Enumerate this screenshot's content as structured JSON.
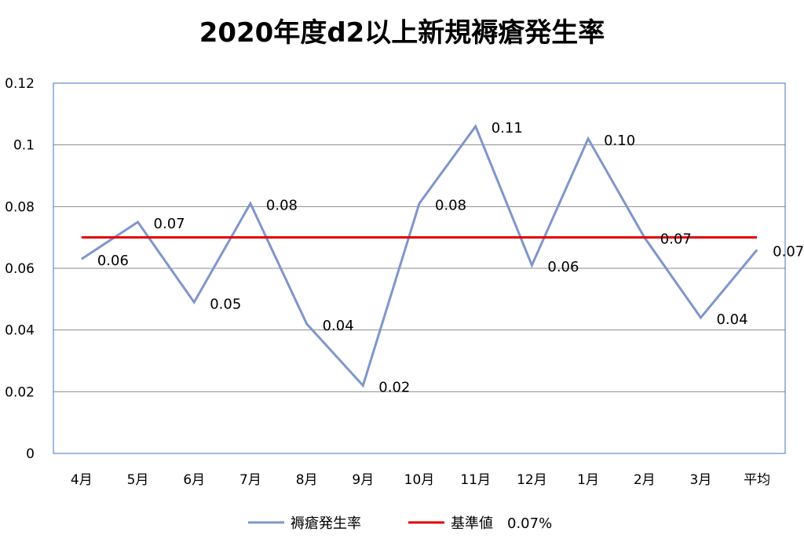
{
  "chart_data": {
    "type": "line",
    "title": "2020年度d2以上新規褥瘡発生率",
    "categories": [
      "4月",
      "5月",
      "6月",
      "7月",
      "8月",
      "9月",
      "10月",
      "11月",
      "12月",
      "1月",
      "2月",
      "3月",
      "平均"
    ],
    "series": [
      {
        "name": "褥瘡発生率",
        "color": "#7f96cc",
        "values": [
          0.063,
          0.075,
          0.049,
          0.081,
          0.042,
          0.022,
          0.081,
          0.106,
          0.061,
          0.102,
          0.07,
          0.044,
          0.066
        ],
        "labels": [
          "0.06",
          "0.07",
          "0.05",
          "0.08",
          "0.04",
          "0.02",
          "0.08",
          "0.11",
          "0.06",
          "0.10",
          "0.07",
          "0.04",
          "0.07"
        ]
      },
      {
        "name": "基準値　0.07%",
        "color": "#e00000",
        "values": [
          0.07,
          0.07,
          0.07,
          0.07,
          0.07,
          0.07,
          0.07,
          0.07,
          0.07,
          0.07,
          0.07,
          0.07,
          0.07
        ]
      }
    ],
    "ylim": [
      0,
      0.12
    ],
    "yticks": [
      "0",
      "0.02",
      "0.04",
      "0.06",
      "0.08",
      "0.1",
      "0.12"
    ],
    "grid": true,
    "legend": "bottom"
  }
}
